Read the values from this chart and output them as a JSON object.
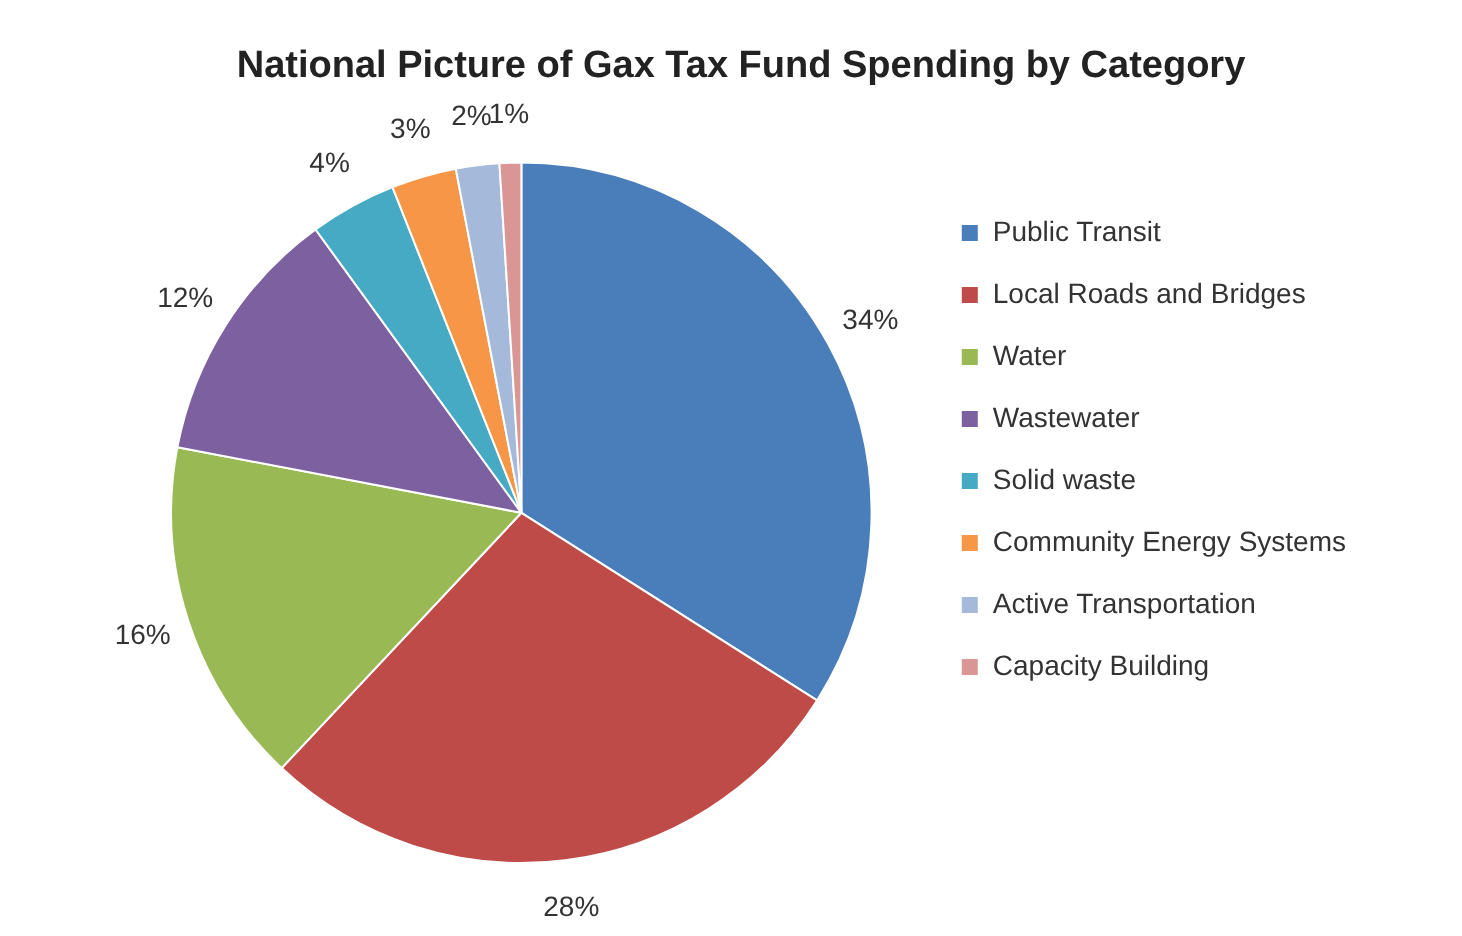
{
  "chart_data": {
    "type": "pie",
    "title": "National Picture of Gax Tax Fund Spending by Category",
    "categories": [
      "Public Transit",
      "Local Roads and Bridges",
      "Water",
      "Wastewater",
      "Solid waste",
      "Community Energy Systems",
      "Active Transportation",
      "Capacity Building"
    ],
    "values": [
      34,
      28,
      16,
      12,
      4,
      3,
      2,
      1
    ],
    "value_labels": [
      "34%",
      "28%",
      "16%",
      "12%",
      "4%",
      "3%",
      "2%",
      "1%"
    ],
    "colors": [
      "#4a7ebb",
      "#be4b48",
      "#98b954",
      "#7d60a0",
      "#46aac5",
      "#f79646",
      "#a5b9da",
      "#d99694"
    ],
    "legend": "right"
  }
}
